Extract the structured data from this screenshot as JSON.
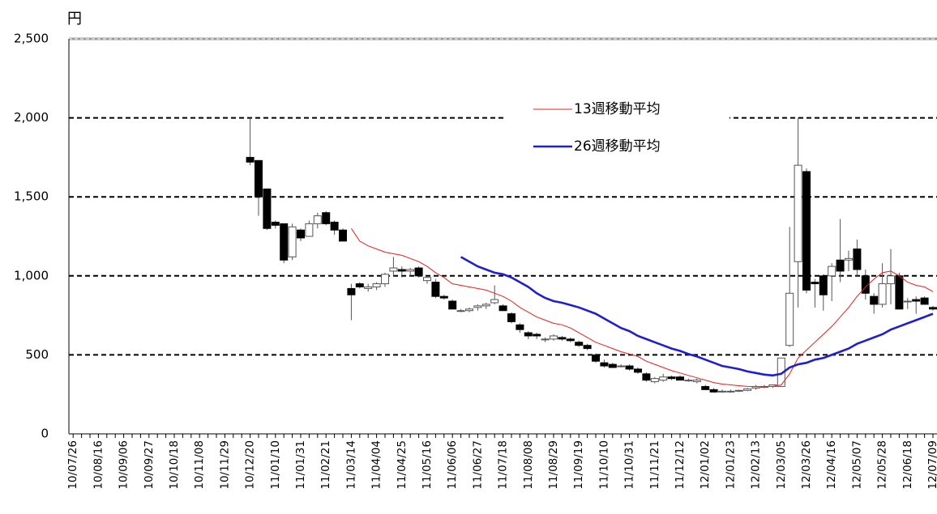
{
  "chart_data": {
    "type": "candlestick",
    "y_label": "円",
    "ylim": [
      0,
      2500
    ],
    "yticks": [
      0,
      500,
      {
        "value": 1000,
        "label": "1,000"
      },
      {
        "value": 1500,
        "label": "1,500"
      },
      {
        "value": 2000,
        "label": "2,000"
      },
      {
        "value": 2500,
        "label": "2,500"
      }
    ],
    "grid": true,
    "categories": [
      "10/07/26",
      null,
      null,
      "10/08/16",
      null,
      null,
      "10/09/06",
      null,
      null,
      "10/09/27",
      null,
      null,
      "10/10/18",
      null,
      null,
      "10/11/08",
      null,
      null,
      "10/11/29",
      null,
      null,
      "10/12/20",
      null,
      null,
      "11/01/10",
      null,
      null,
      "11/01/31",
      null,
      null,
      "11/02/21",
      null,
      null,
      "11/03/14",
      null,
      null,
      "11/04/04",
      null,
      null,
      "11/04/25",
      null,
      null,
      "11/05/16",
      null,
      null,
      "11/06/06",
      null,
      null,
      "11/06/27",
      null,
      null,
      "11/07/18",
      null,
      null,
      "11/08/08",
      null,
      null,
      "11/08/29",
      null,
      null,
      "11/09/19",
      null,
      null,
      "11/10/10",
      null,
      null,
      "11/10/31",
      null,
      null,
      "11/11/21",
      null,
      null,
      "11/12/12",
      null,
      null,
      "12/01/02",
      null,
      null,
      "12/01/23",
      null,
      null,
      "12/02/13",
      null,
      null,
      "12/03/05",
      null,
      null,
      "12/03/26",
      null,
      null,
      "12/04/16",
      null,
      null,
      "12/05/07",
      null,
      null,
      "12/05/28",
      null,
      null,
      "12/06/18",
      null,
      null,
      "12/07/09"
    ],
    "up_color": "#ffffff",
    "down_color": "#000000",
    "candles": {
      "open": [
        null,
        null,
        null,
        null,
        null,
        null,
        null,
        null,
        null,
        null,
        null,
        null,
        null,
        null,
        null,
        null,
        null,
        null,
        null,
        null,
        null,
        1750,
        1730,
        1550,
        1340,
        1330,
        1120,
        1290,
        1250,
        1330,
        1400,
        1340,
        1290,
        920,
        950,
        920,
        930,
        950,
        1030,
        1040,
        1030,
        1050,
        970,
        960,
        870,
        840,
        780,
        780,
        800,
        810,
        830,
        810,
        760,
        690,
        640,
        630,
        600,
        600,
        610,
        600,
        580,
        560,
        500,
        450,
        440,
        430,
        430,
        410,
        380,
        330,
        340,
        360,
        360,
        340,
        330,
        300,
        280,
        270,
        270,
        270,
        275,
        290,
        300,
        300,
        300,
        560,
        1090,
        1660,
        960,
        1000,
        1000,
        1100,
        1100,
        1170,
        1000,
        870,
        820,
        950,
        1000,
        840,
        850,
        860,
        800
      ],
      "high": [
        null,
        null,
        null,
        null,
        null,
        null,
        null,
        null,
        null,
        null,
        null,
        null,
        null,
        null,
        null,
        null,
        null,
        null,
        null,
        null,
        null,
        2000,
        1730,
        1550,
        1350,
        1330,
        1330,
        1300,
        1350,
        1400,
        1410,
        1350,
        1300,
        950,
        960,
        950,
        960,
        1020,
        1120,
        1060,
        1050,
        1060,
        1000,
        980,
        880,
        850,
        790,
        800,
        820,
        830,
        940,
        820,
        770,
        700,
        650,
        640,
        610,
        630,
        620,
        610,
        590,
        570,
        510,
        470,
        450,
        440,
        440,
        420,
        390,
        360,
        380,
        370,
        370,
        350,
        350,
        310,
        290,
        280,
        280,
        280,
        290,
        310,
        310,
        310,
        480,
        1310,
        2000,
        1680,
        980,
        1010,
        1080,
        1360,
        1160,
        1230,
        1040,
        890,
        1080,
        1170,
        1020,
        860,
        870,
        870,
        810
      ],
      "low": [
        null,
        null,
        null,
        null,
        null,
        null,
        null,
        null,
        null,
        null,
        null,
        null,
        null,
        null,
        null,
        null,
        null,
        null,
        null,
        null,
        null,
        1700,
        1380,
        1290,
        1300,
        1080,
        1100,
        1220,
        1250,
        1300,
        1320,
        1260,
        1220,
        720,
        920,
        900,
        910,
        930,
        1000,
        990,
        1000,
        990,
        950,
        860,
        850,
        790,
        770,
        770,
        780,
        790,
        820,
        780,
        700,
        640,
        600,
        600,
        580,
        590,
        590,
        580,
        550,
        530,
        450,
        420,
        420,
        420,
        400,
        380,
        330,
        320,
        330,
        340,
        340,
        330,
        320,
        280,
        260,
        260,
        260,
        265,
        270,
        280,
        290,
        290,
        300,
        550,
        800,
        890,
        800,
        780,
        840,
        960,
        1030,
        1000,
        850,
        760,
        800,
        820,
        790,
        790,
        760,
        830,
        780
      ],
      "close": [
        null,
        null,
        null,
        null,
        null,
        null,
        null,
        null,
        null,
        null,
        null,
        null,
        null,
        null,
        null,
        null,
        null,
        null,
        null,
        null,
        null,
        1720,
        1500,
        1300,
        1320,
        1100,
        1310,
        1240,
        1330,
        1380,
        1330,
        1290,
        1220,
        880,
        930,
        930,
        950,
        1010,
        1050,
        1030,
        1040,
        1000,
        990,
        870,
        860,
        790,
        780,
        790,
        810,
        820,
        850,
        780,
        710,
        660,
        620,
        620,
        600,
        620,
        600,
        590,
        560,
        540,
        460,
        430,
        420,
        430,
        410,
        390,
        340,
        350,
        360,
        350,
        340,
        340,
        340,
        280,
        265,
        270,
        270,
        275,
        285,
        300,
        300,
        310,
        480,
        890,
        1700,
        910,
        950,
        880,
        1060,
        1030,
        1110,
        1040,
        890,
        820,
        950,
        1000,
        790,
        840,
        840,
        820,
        790
      ]
    },
    "series": [
      {
        "name": "13週移動平均",
        "color": "#e8201c",
        "width": 1,
        "values": [
          null,
          null,
          null,
          null,
          null,
          null,
          null,
          null,
          null,
          null,
          null,
          null,
          null,
          null,
          null,
          null,
          null,
          null,
          null,
          null,
          null,
          null,
          null,
          null,
          null,
          null,
          null,
          null,
          null,
          null,
          null,
          null,
          null,
          1300,
          1220,
          1190,
          1170,
          1150,
          1140,
          1130,
          1110,
          1090,
          1060,
          1020,
          990,
          950,
          940,
          930,
          920,
          910,
          890,
          870,
          840,
          800,
          770,
          740,
          720,
          700,
          690,
          670,
          640,
          610,
          580,
          560,
          540,
          520,
          505,
          490,
          460,
          440,
          420,
          400,
          385,
          370,
          355,
          340,
          325,
          315,
          310,
          305,
          300,
          298,
          297,
          300,
          310,
          380,
          480,
          530,
          580,
          630,
          680,
          740,
          800,
          870,
          930,
          980,
          1020,
          1030,
          1000,
          960,
          940,
          930,
          900
        ]
      },
      {
        "name": "26週移動平均",
        "color": "#1f1fd0",
        "width": 2.6,
        "values": [
          null,
          null,
          null,
          null,
          null,
          null,
          null,
          null,
          null,
          null,
          null,
          null,
          null,
          null,
          null,
          null,
          null,
          null,
          null,
          null,
          null,
          null,
          null,
          null,
          null,
          null,
          null,
          null,
          null,
          null,
          null,
          null,
          null,
          null,
          null,
          null,
          null,
          null,
          null,
          null,
          null,
          null,
          null,
          null,
          null,
          null,
          1120,
          1090,
          1060,
          1040,
          1020,
          1010,
          990,
          960,
          930,
          890,
          860,
          840,
          830,
          815,
          800,
          780,
          760,
          730,
          700,
          670,
          650,
          620,
          600,
          580,
          560,
          540,
          525,
          505,
          490,
          470,
          450,
          430,
          420,
          410,
          395,
          385,
          375,
          370,
          380,
          420,
          440,
          450,
          470,
          480,
          500,
          520,
          540,
          570,
          590,
          610,
          630,
          660,
          680,
          700,
          720,
          740,
          760
        ]
      }
    ]
  }
}
